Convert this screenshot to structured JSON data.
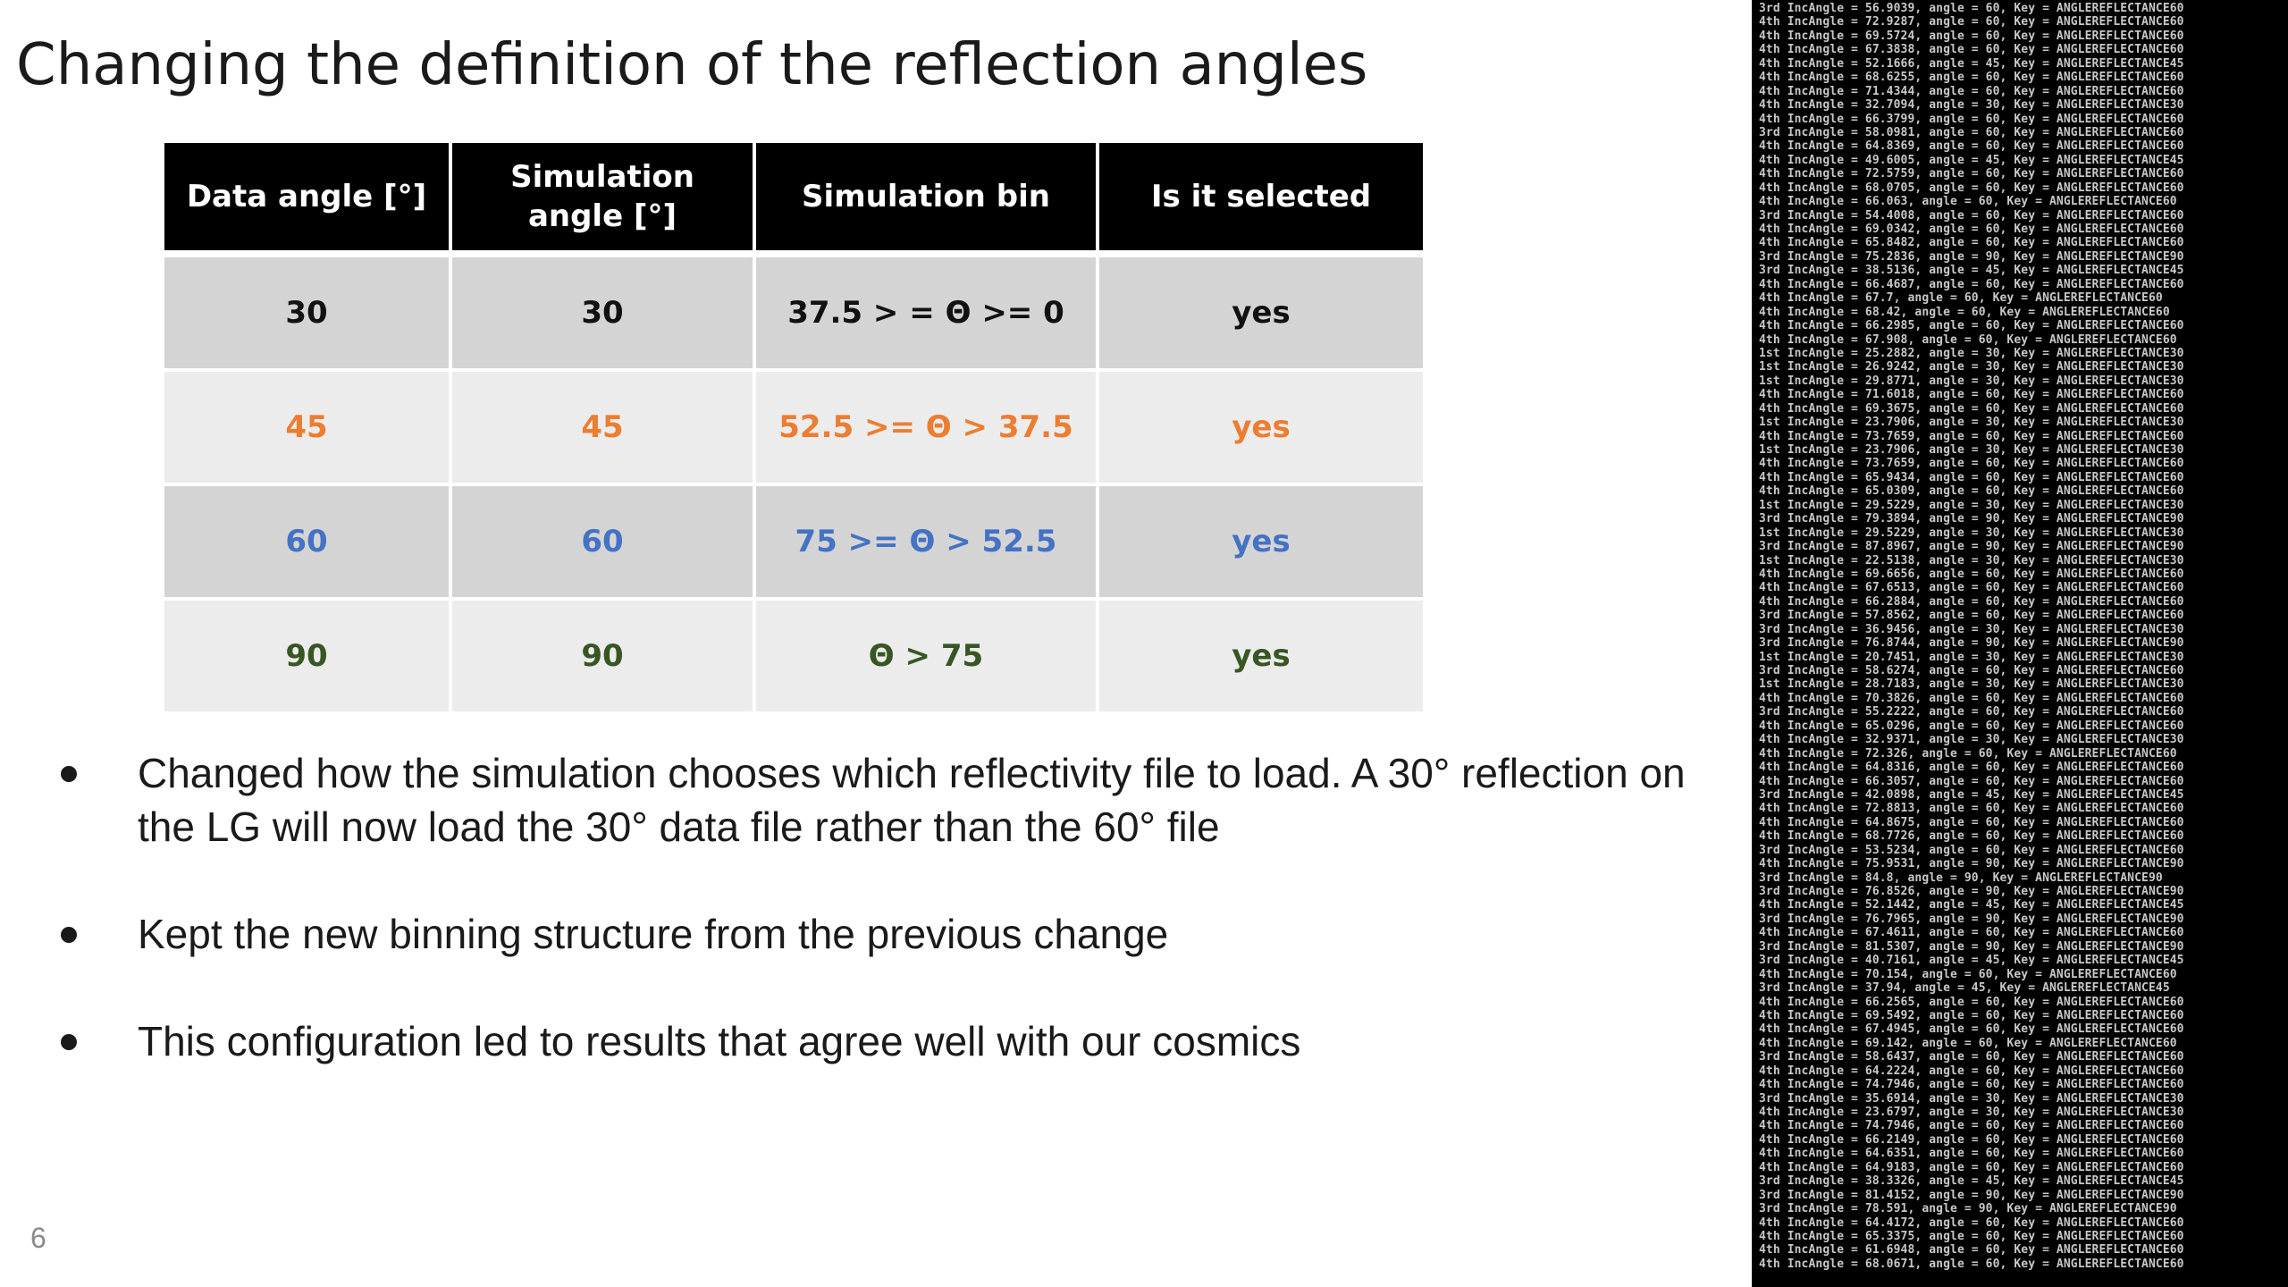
{
  "title": "Changing the definition of the reflection angles",
  "table": {
    "headers": [
      "Data angle [°]",
      "Simulation angle [°]",
      "Simulation bin",
      "Is it selected"
    ],
    "rows": [
      {
        "cells": [
          "30",
          "30",
          "37.5 > = Θ >= 0",
          "yes"
        ],
        "color": "black"
      },
      {
        "cells": [
          "45",
          "45",
          "52.5 >= Θ > 37.5",
          "yes"
        ],
        "color": "orange"
      },
      {
        "cells": [
          "60",
          "60",
          "75 >= Θ > 52.5",
          "yes"
        ],
        "color": "blue"
      },
      {
        "cells": [
          "90",
          "90",
          "Θ > 75",
          "yes"
        ],
        "color": "green"
      }
    ]
  },
  "bullets": [
    "Changed how the simulation chooses which reflectivity file to load. A 30° reflection on the LG will now load the 30° data file rather than the 60° file",
    "Kept the new binning structure from the previous change",
    "This configuration led to results that agree well with our cosmics"
  ],
  "page_number": "6",
  "terminal": {
    "lines": [
      "3rd IncAngle = 56.9039, angle = 60, Key = ANGLEREFLECTANCE60",
      "4th IncAngle = 72.9287, angle = 60, Key = ANGLEREFLECTANCE60",
      "4th IncAngle = 69.5724, angle = 60, Key = ANGLEREFLECTANCE60",
      "4th IncAngle = 67.3838, angle = 60, Key = ANGLEREFLECTANCE60",
      "4th IncAngle = 52.1666, angle = 45, Key = ANGLEREFLECTANCE45",
      "4th IncAngle = 68.6255, angle = 60, Key = ANGLEREFLECTANCE60",
      "4th IncAngle = 71.4344, angle = 60, Key = ANGLEREFLECTANCE60",
      "4th IncAngle = 32.7094, angle = 30, Key = ANGLEREFLECTANCE30",
      "4th IncAngle = 66.3799, angle = 60, Key = ANGLEREFLECTANCE60",
      "3rd IncAngle = 58.0981, angle = 60, Key = ANGLEREFLECTANCE60",
      "4th IncAngle = 64.8369, angle = 60, Key = ANGLEREFLECTANCE60",
      "4th IncAngle = 49.6005, angle = 45, Key = ANGLEREFLECTANCE45",
      "4th IncAngle = 72.5759, angle = 60, Key = ANGLEREFLECTANCE60",
      "4th IncAngle = 68.0705, angle = 60, Key = ANGLEREFLECTANCE60",
      "4th IncAngle = 66.063, angle = 60, Key = ANGLEREFLECTANCE60",
      "3rd IncAngle = 54.4008, angle = 60, Key = ANGLEREFLECTANCE60",
      "4th IncAngle = 69.0342, angle = 60, Key = ANGLEREFLECTANCE60",
      "4th IncAngle = 65.8482, angle = 60, Key = ANGLEREFLECTANCE60",
      "3rd IncAngle = 75.2836, angle = 90, Key = ANGLEREFLECTANCE90",
      "3rd IncAngle = 38.5136, angle = 45, Key = ANGLEREFLECTANCE45",
      "4th IncAngle = 66.4687, angle = 60, Key = ANGLEREFLECTANCE60",
      "4th IncAngle = 67.7, angle = 60, Key = ANGLEREFLECTANCE60",
      "4th IncAngle = 68.42, angle = 60, Key = ANGLEREFLECTANCE60",
      "4th IncAngle = 66.2985, angle = 60, Key = ANGLEREFLECTANCE60",
      "4th IncAngle = 67.908, angle = 60, Key = ANGLEREFLECTANCE60",
      "1st IncAngle = 25.2882, angle = 30, Key = ANGLEREFLECTANCE30",
      "1st IncAngle = 26.9242, angle = 30, Key = ANGLEREFLECTANCE30",
      "1st IncAngle = 29.8771, angle = 30, Key = ANGLEREFLECTANCE30",
      "4th IncAngle = 71.6018, angle = 60, Key = ANGLEREFLECTANCE60",
      "4th IncAngle = 69.3675, angle = 60, Key = ANGLEREFLECTANCE60",
      "1st IncAngle = 23.7906, angle = 30, Key = ANGLEREFLECTANCE30",
      "4th IncAngle = 73.7659, angle = 60, Key = ANGLEREFLECTANCE60",
      "1st IncAngle = 23.7906, angle = 30, Key = ANGLEREFLECTANCE30",
      "4th IncAngle = 73.7659, angle = 60, Key = ANGLEREFLECTANCE60",
      "4th IncAngle = 65.9434, angle = 60, Key = ANGLEREFLECTANCE60",
      "4th IncAngle = 65.0309, angle = 60, Key = ANGLEREFLECTANCE60",
      "1st IncAngle = 29.5229, angle = 30, Key = ANGLEREFLECTANCE30",
      "3rd IncAngle = 79.3894, angle = 90, Key = ANGLEREFLECTANCE90",
      "1st IncAngle = 29.5229, angle = 30, Key = ANGLEREFLECTANCE30",
      "3rd IncAngle = 87.8967, angle = 90, Key = ANGLEREFLECTANCE90",
      "1st IncAngle = 22.5138, angle = 30, Key = ANGLEREFLECTANCE30",
      "4th IncAngle = 69.6656, angle = 60, Key = ANGLEREFLECTANCE60",
      "4th IncAngle = 67.6513, angle = 60, Key = ANGLEREFLECTANCE60",
      "4th IncAngle = 66.2884, angle = 60, Key = ANGLEREFLECTANCE60",
      "3rd IncAngle = 57.8562, angle = 60, Key = ANGLEREFLECTANCE60",
      "3rd IncAngle = 36.9456, angle = 30, Key = ANGLEREFLECTANCE30",
      "3rd IncAngle = 76.8744, angle = 90, Key = ANGLEREFLECTANCE90",
      "1st IncAngle = 20.7451, angle = 30, Key = ANGLEREFLECTANCE30",
      "3rd IncAngle = 58.6274, angle = 60, Key = ANGLEREFLECTANCE60",
      "1st IncAngle = 28.7183, angle = 30, Key = ANGLEREFLECTANCE30",
      "4th IncAngle = 70.3826, angle = 60, Key = ANGLEREFLECTANCE60",
      "3rd IncAngle = 55.2222, angle = 60, Key = ANGLEREFLECTANCE60",
      "4th IncAngle = 65.0296, angle = 60, Key = ANGLEREFLECTANCE60",
      "4th IncAngle = 32.9371, angle = 30, Key = ANGLEREFLECTANCE30",
      "4th IncAngle = 72.326, angle = 60, Key = ANGLEREFLECTANCE60",
      "4th IncAngle = 64.8316, angle = 60, Key = ANGLEREFLECTANCE60",
      "4th IncAngle = 66.3057, angle = 60, Key = ANGLEREFLECTANCE60",
      "3rd IncAngle = 42.0898, angle = 45, Key = ANGLEREFLECTANCE45",
      "4th IncAngle = 72.8813, angle = 60, Key = ANGLEREFLECTANCE60",
      "4th IncAngle = 64.8675, angle = 60, Key = ANGLEREFLECTANCE60",
      "4th IncAngle = 68.7726, angle = 60, Key = ANGLEREFLECTANCE60",
      "3rd IncAngle = 53.5234, angle = 60, Key = ANGLEREFLECTANCE60",
      "4th IncAngle = 75.9531, angle = 90, Key = ANGLEREFLECTANCE90",
      "3rd IncAngle = 84.8, angle = 90, Key = ANGLEREFLECTANCE90",
      "3rd IncAngle = 76.8526, angle = 90, Key = ANGLEREFLECTANCE90",
      "4th IncAngle = 52.1442, angle = 45, Key = ANGLEREFLECTANCE45",
      "3rd IncAngle = 76.7965, angle = 90, Key = ANGLEREFLECTANCE90",
      "4th IncAngle = 67.4611, angle = 60, Key = ANGLEREFLECTANCE60",
      "3rd IncAngle = 81.5307, angle = 90, Key = ANGLEREFLECTANCE90",
      "3rd IncAngle = 40.7161, angle = 45, Key = ANGLEREFLECTANCE45",
      "4th IncAngle = 70.154, angle = 60, Key = ANGLEREFLECTANCE60",
      "3rd IncAngle = 37.94, angle = 45, Key = ANGLEREFLECTANCE45",
      "4th IncAngle = 66.2565, angle = 60, Key = ANGLEREFLECTANCE60",
      "4th IncAngle = 69.5492, angle = 60, Key = ANGLEREFLECTANCE60",
      "4th IncAngle = 67.4945, angle = 60, Key = ANGLEREFLECTANCE60",
      "4th IncAngle = 69.142, angle = 60, Key = ANGLEREFLECTANCE60",
      "3rd IncAngle = 58.6437, angle = 60, Key = ANGLEREFLECTANCE60",
      "4th IncAngle = 64.2224, angle = 60, Key = ANGLEREFLECTANCE60",
      "4th IncAngle = 74.7946, angle = 60, Key = ANGLEREFLECTANCE60",
      "3rd IncAngle = 35.6914, angle = 30, Key = ANGLEREFLECTANCE30",
      "4th IncAngle = 23.6797, angle = 30, Key = ANGLEREFLECTANCE30",
      "4th IncAngle = 74.7946, angle = 60, Key = ANGLEREFLECTANCE60",
      "4th IncAngle = 66.2149, angle = 60, Key = ANGLEREFLECTANCE60",
      "4th IncAngle = 64.6351, angle = 60, Key = ANGLEREFLECTANCE60",
      "4th IncAngle = 64.9183, angle = 60, Key = ANGLEREFLECTANCE60",
      "3rd IncAngle = 38.3326, angle = 45, Key = ANGLEREFLECTANCE45",
      "3rd IncAngle = 81.4152, angle = 90, Key = ANGLEREFLECTANCE90",
      "3rd IncAngle = 78.591, angle = 90, Key = ANGLEREFLECTANCE90",
      "4th IncAngle = 64.4172, angle = 60, Key = ANGLEREFLECTANCE60",
      "4th IncAngle = 65.3375, angle = 60, Key = ANGLEREFLECTANCE60",
      "4th IncAngle = 61.6948, angle = 60, Key = ANGLEREFLECTANCE60",
      "4th IncAngle = 68.0671, angle = 60, Key = ANGLEREFLECTANCE60"
    ]
  },
  "colors": {
    "black": "#111111",
    "orange": "#ed7d31",
    "blue": "#4472c4",
    "green": "#375623",
    "header_bg": "#000000",
    "row_dark": "#d4d4d4",
    "row_light": "#ececec"
  }
}
